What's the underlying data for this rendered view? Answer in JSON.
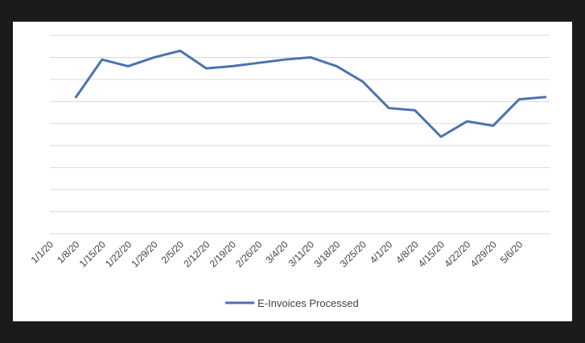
{
  "chart_data": {
    "type": "line",
    "title": "",
    "xlabel": "",
    "ylabel": "",
    "categories": [
      "1/1/20",
      "1/8/20",
      "1/15/20",
      "1/22/20",
      "1/29/20",
      "2/5/20",
      "2/12/20",
      "2/19/20",
      "2/26/20",
      "3/4/20",
      "3/11/20",
      "3/18/20",
      "3/25/20",
      "4/1/20",
      "4/8/20",
      "4/15/20",
      "4/22/20",
      "4/29/20",
      "5/6/20"
    ],
    "series": [
      {
        "name": "E-Invoices Processed",
        "color": "#4a72b0",
        "values": [
          6.2,
          7.9,
          7.6,
          8.0,
          8.3,
          7.5,
          7.6,
          7.75,
          7.9,
          8.0,
          7.6,
          6.9,
          5.7,
          5.6,
          4.4,
          5.1,
          4.9,
          6.1,
          6.2
        ]
      }
    ],
    "ylim": [
      0,
      9
    ],
    "y_gridlines": [
      0,
      1,
      2,
      3,
      4,
      5,
      6,
      7,
      8,
      9
    ],
    "y_tick_labels_visible": false,
    "grid": true,
    "legend_position": "bottom"
  }
}
